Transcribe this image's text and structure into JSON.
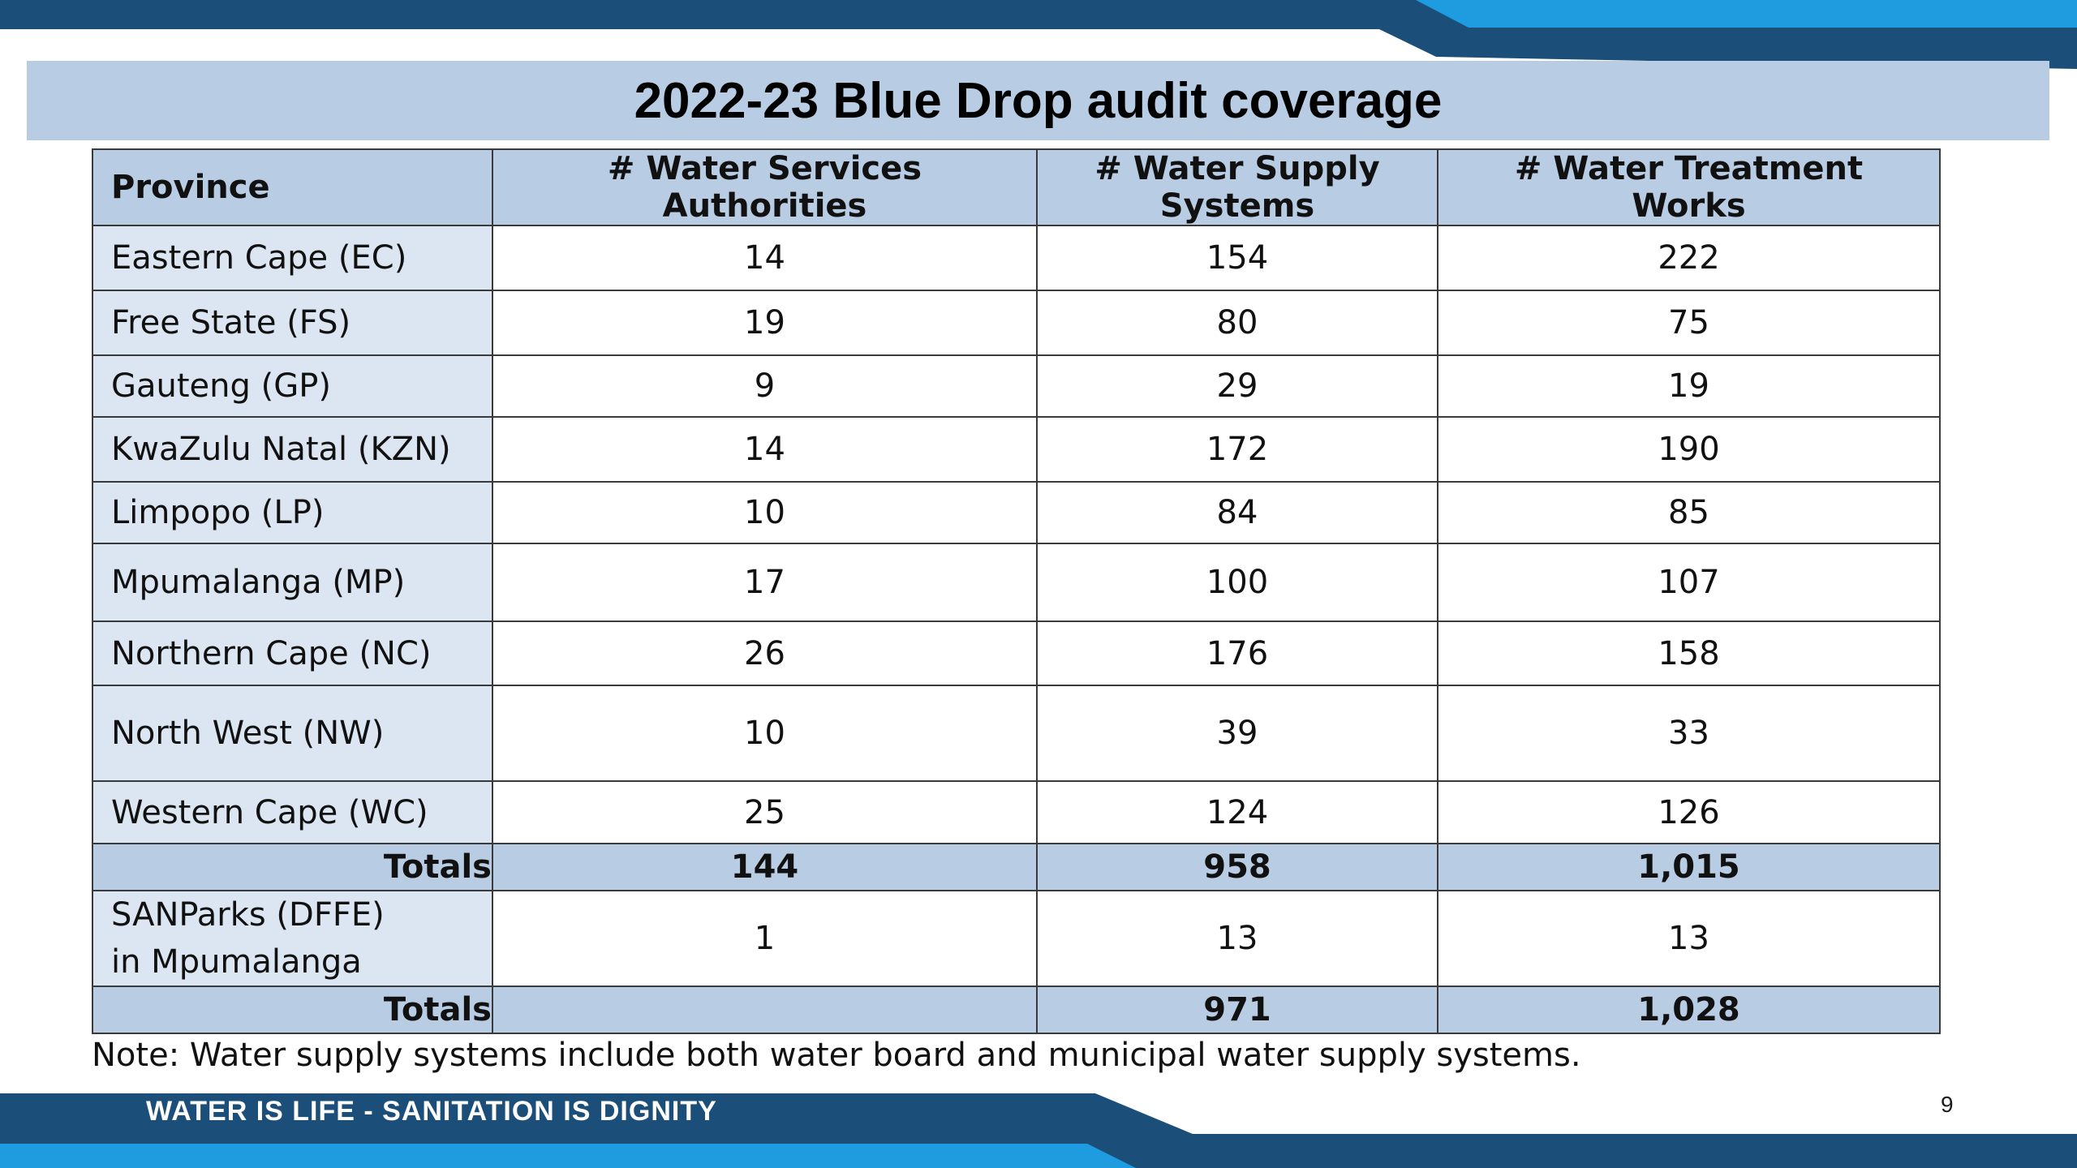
{
  "slide": {
    "title": "2022-23 Blue Drop audit coverage",
    "note": "Note: Water supply systems include both water board and municipal water supply systems.",
    "footer_slogan": "WATER IS LIFE - SANITATION IS DIGNITY",
    "page_number": "9",
    "colors": {
      "dark_blue": "#1b4f7a",
      "light_blue": "#1f9be0",
      "header_fill": "#b8cce4",
      "province_fill": "#dce6f2"
    }
  },
  "table": {
    "headers": {
      "province": "Province",
      "wsa": "# Water Services Authorities",
      "wss": "# Water Supply Systems",
      "wtw": "# Water Treatment Works"
    },
    "rows": [
      {
        "province": "Eastern Cape (EC)",
        "wsa": "14",
        "wss": "154",
        "wtw": "222"
      },
      {
        "province": "Free State (FS)",
        "wsa": "19",
        "wss": "80",
        "wtw": "75"
      },
      {
        "province": "Gauteng (GP)",
        "wsa": "9",
        "wss": "29",
        "wtw": "19"
      },
      {
        "province": "KwaZulu Natal (KZN)",
        "wsa": "14",
        "wss": "172",
        "wtw": "190"
      },
      {
        "province": "Limpopo (LP)",
        "wsa": "10",
        "wss": "84",
        "wtw": "85"
      },
      {
        "province": "Mpumalanga (MP)",
        "wsa": "17",
        "wss": "100",
        "wtw": "107"
      },
      {
        "province": "Northern Cape (NC)",
        "wsa": "26",
        "wss": "176",
        "wtw": "158"
      },
      {
        "province": "North West (NW)",
        "wsa": "10",
        "wss": "39",
        "wtw": "33"
      },
      {
        "province": "Western Cape (WC)",
        "wsa": "25",
        "wss": "124",
        "wtw": "126"
      }
    ],
    "totals": {
      "label": "Totals",
      "wsa": "144",
      "wss": "958",
      "wtw": "1,015"
    },
    "sanparks": {
      "line1": "SANParks (DFFE)",
      "line2": "in Mpumalanga",
      "wsa": "1",
      "wss": "13",
      "wtw": "13"
    },
    "grand_totals": {
      "label": "Totals",
      "wsa": "",
      "wss": "971",
      "wtw": "1,028"
    }
  }
}
